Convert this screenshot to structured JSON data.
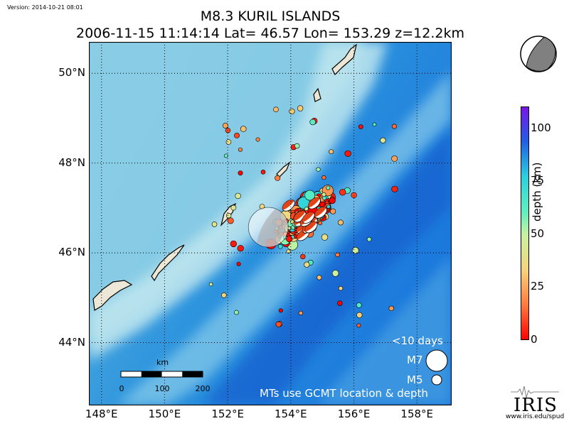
{
  "version": "Version: 2014-10-21 08:01",
  "title": {
    "line1": "M8.3 KURIL ISLANDS",
    "line2": "2006-11-15 11:14:14 Lat= 46.57 Lon= 153.29 z=12.2km"
  },
  "map": {
    "lon_range": [
      147.6,
      159.1
    ],
    "lat_range": [
      42.6,
      50.7
    ],
    "lat_labels": [
      "50°N",
      "48°N",
      "46°N",
      "44°N"
    ],
    "lon_labels": [
      "148°E",
      "150°E",
      "152°E",
      "154°E",
      "156°E",
      "158°E"
    ],
    "mainshock": {
      "lon": 153.29,
      "lat": 46.57,
      "depth_km": 12.2
    }
  },
  "colorbar": {
    "label": "depth (km)",
    "ticks": [
      "100",
      "75",
      "50",
      "25",
      "0"
    ],
    "range_km": [
      0,
      110
    ]
  },
  "legend": {
    "title": "<10 days",
    "m7": "M7",
    "m5": "M5",
    "note": "MTs use GCMT location & depth"
  },
  "scalebar": {
    "unit": "km",
    "ticks": [
      "0",
      "100",
      "200"
    ]
  },
  "logo": {
    "text": "IRIS",
    "url": "www.iris.edu/spud"
  },
  "colors": {
    "ocean_deep": "#1e7fe0",
    "ocean_shallow": "#69c7e8",
    "land": "#ece7d6",
    "grid": "#000000"
  },
  "icons": {
    "beachball": "focal-mechanism-icon",
    "logo": "iris-seismogram-icon"
  }
}
